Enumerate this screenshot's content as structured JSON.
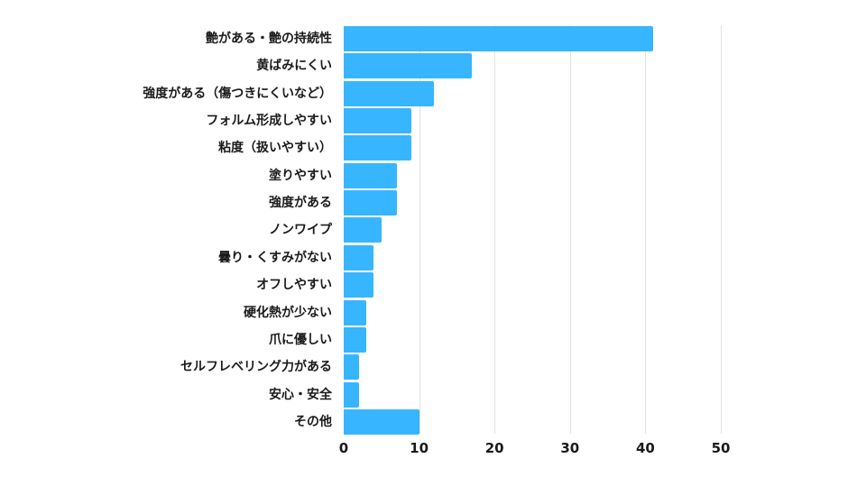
{
  "chart_data": {
    "type": "bar",
    "orientation": "horizontal",
    "title": "",
    "xlabel": "",
    "ylabel": "",
    "xlim": [
      0,
      50
    ],
    "xticks": [
      0,
      10,
      20,
      30,
      40,
      50
    ],
    "grid": true,
    "bar_color": "#38b5ff",
    "categories": [
      "艶がある・艶の持続性",
      "黄ばみにくい",
      "強度がある（傷つきにくいなど）",
      "フォルム形成しやすい",
      "粘度（扱いやすい）",
      "塗りやすい",
      "強度がある",
      "ノンワイプ",
      "曇り・くすみがない",
      "オフしやすい",
      "硬化熱が少ない",
      "爪に優しい",
      "セルフレベリング力がある",
      "安心・安全",
      "その他"
    ],
    "values": [
      41,
      17,
      12,
      9,
      9,
      7,
      7,
      5,
      4,
      4,
      3,
      3,
      2,
      2,
      10
    ]
  }
}
